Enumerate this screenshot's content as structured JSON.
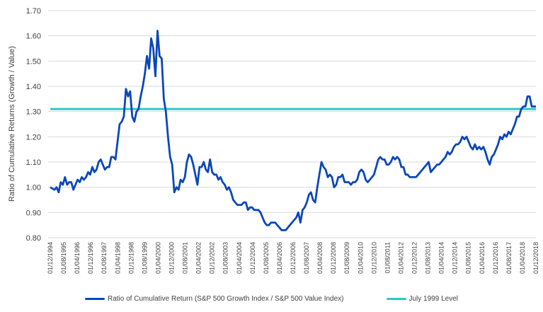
{
  "chart_data": {
    "type": "line",
    "title": "",
    "xlabel": "",
    "ylabel": "Ratio of Cumulative Returns (Growth / Value)",
    "ylim": [
      0.8,
      1.7
    ],
    "yticks": [
      "0.80",
      "0.90",
      "1.00",
      "1.10",
      "1.20",
      "1.30",
      "1.40",
      "1.50",
      "1.60",
      "1.70"
    ],
    "grid": true,
    "legend_position": "bottom",
    "x_start": "01/12/1994",
    "x_end": "01/12/2018",
    "x_frequency": "monthly",
    "xticks": [
      "01/12/1994",
      "01/08/1995",
      "01/04/1996",
      "01/12/1996",
      "01/08/1997",
      "01/04/1998",
      "01/12/1998",
      "01/08/1999",
      "01/04/2000",
      "01/12/2000",
      "01/08/2001",
      "01/04/2002",
      "01/12/2002",
      "01/08/2003",
      "01/04/2004",
      "01/12/2004",
      "01/08/2005",
      "01/04/2006",
      "01/12/2006",
      "01/08/2007",
      "01/04/2008",
      "01/12/2008",
      "01/08/2009",
      "01/04/2010",
      "01/12/2010",
      "01/08/2011",
      "01/04/2012",
      "01/12/2012",
      "01/08/2013",
      "01/04/2014",
      "01/12/2014",
      "01/08/2015",
      "01/04/2016",
      "01/12/2016",
      "01/08/2017",
      "01/04/2018",
      "01/12/2018"
    ],
    "series": [
      {
        "name": "Ratio of Cumulative Return (S&P 500 Growth Index / S&P 500 Value Index)",
        "color": "#0a47b8",
        "keypoints": [
          [
            0,
            1.0
          ],
          [
            2,
            0.99
          ],
          [
            3,
            1.0
          ],
          [
            4,
            0.98
          ],
          [
            5,
            1.02
          ],
          [
            6,
            1.01
          ],
          [
            7,
            1.04
          ],
          [
            8,
            1.01
          ],
          [
            9,
            1.02
          ],
          [
            10,
            1.02
          ],
          [
            11,
            0.99
          ],
          [
            12,
            1.01
          ],
          [
            13,
            1.03
          ],
          [
            14,
            1.02
          ],
          [
            15,
            1.04
          ],
          [
            16,
            1.03
          ],
          [
            17,
            1.04
          ],
          [
            18,
            1.06
          ],
          [
            19,
            1.05
          ],
          [
            20,
            1.08
          ],
          [
            21,
            1.06
          ],
          [
            22,
            1.07
          ],
          [
            23,
            1.1
          ],
          [
            24,
            1.11
          ],
          [
            25,
            1.09
          ],
          [
            26,
            1.07
          ],
          [
            27,
            1.08
          ],
          [
            28,
            1.08
          ],
          [
            29,
            1.12
          ],
          [
            30,
            1.12
          ],
          [
            31,
            1.11
          ],
          [
            32,
            1.18
          ],
          [
            33,
            1.25
          ],
          [
            34,
            1.26
          ],
          [
            35,
            1.28
          ],
          [
            36,
            1.39
          ],
          [
            37,
            1.36
          ],
          [
            38,
            1.38
          ],
          [
            39,
            1.28
          ],
          [
            40,
            1.26
          ],
          [
            41,
            1.3
          ],
          [
            42,
            1.31
          ],
          [
            43,
            1.36
          ],
          [
            44,
            1.4
          ],
          [
            45,
            1.45
          ],
          [
            46,
            1.52
          ],
          [
            47,
            1.47
          ],
          [
            48,
            1.59
          ],
          [
            49,
            1.55
          ],
          [
            50,
            1.44
          ],
          [
            51,
            1.62
          ],
          [
            52,
            1.52
          ],
          [
            53,
            1.51
          ],
          [
            54,
            1.35
          ],
          [
            55,
            1.3
          ],
          [
            56,
            1.2
          ],
          [
            57,
            1.12
          ],
          [
            58,
            1.09
          ],
          [
            59,
            0.98
          ],
          [
            60,
            1.0
          ],
          [
            61,
            0.99
          ],
          [
            62,
            1.03
          ],
          [
            63,
            1.02
          ],
          [
            64,
            1.04
          ],
          [
            65,
            1.1
          ],
          [
            66,
            1.13
          ],
          [
            67,
            1.12
          ],
          [
            68,
            1.09
          ],
          [
            69,
            1.05
          ],
          [
            70,
            1.01
          ],
          [
            71,
            1.08
          ],
          [
            72,
            1.08
          ],
          [
            73,
            1.1
          ],
          [
            74,
            1.07
          ],
          [
            75,
            1.06
          ],
          [
            76,
            1.11
          ],
          [
            77,
            1.06
          ],
          [
            78,
            1.05
          ],
          [
            79,
            1.05
          ],
          [
            80,
            1.03
          ],
          [
            81,
            1.04
          ],
          [
            82,
            1.02
          ],
          [
            83,
            1.01
          ],
          [
            84,
            0.99
          ],
          [
            85,
            1.0
          ],
          [
            86,
            0.98
          ],
          [
            87,
            0.95
          ],
          [
            88,
            0.94
          ],
          [
            89,
            0.93
          ],
          [
            90,
            0.93
          ],
          [
            91,
            0.93
          ],
          [
            92,
            0.94
          ],
          [
            93,
            0.94
          ],
          [
            94,
            0.91
          ],
          [
            95,
            0.92
          ],
          [
            96,
            0.92
          ],
          [
            97,
            0.91
          ],
          [
            98,
            0.91
          ],
          [
            99,
            0.91
          ],
          [
            100,
            0.9
          ],
          [
            101,
            0.88
          ],
          [
            102,
            0.86
          ],
          [
            103,
            0.85
          ],
          [
            104,
            0.85
          ],
          [
            105,
            0.86
          ],
          [
            106,
            0.86
          ],
          [
            107,
            0.86
          ],
          [
            108,
            0.85
          ],
          [
            109,
            0.84
          ],
          [
            110,
            0.83
          ],
          [
            111,
            0.83
          ],
          [
            112,
            0.83
          ],
          [
            113,
            0.84
          ],
          [
            114,
            0.85
          ],
          [
            115,
            0.86
          ],
          [
            116,
            0.87
          ],
          [
            117,
            0.88
          ],
          [
            118,
            0.9
          ],
          [
            119,
            0.86
          ],
          [
            120,
            0.91
          ],
          [
            121,
            0.92
          ],
          [
            122,
            0.94
          ],
          [
            123,
            0.97
          ],
          [
            124,
            0.98
          ],
          [
            125,
            0.95
          ],
          [
            126,
            0.94
          ],
          [
            127,
            1.0
          ],
          [
            128,
            1.05
          ],
          [
            129,
            1.1
          ],
          [
            130,
            1.08
          ],
          [
            131,
            1.07
          ],
          [
            132,
            1.04
          ],
          [
            133,
            1.05
          ],
          [
            134,
            1.04
          ],
          [
            135,
            1.0
          ],
          [
            136,
            1.01
          ],
          [
            137,
            1.04
          ],
          [
            138,
            1.04
          ],
          [
            139,
            1.05
          ],
          [
            140,
            1.02
          ],
          [
            141,
            1.02
          ],
          [
            142,
            1.02
          ],
          [
            143,
            1.01
          ],
          [
            144,
            1.02
          ],
          [
            145,
            1.02
          ],
          [
            146,
            1.03
          ],
          [
            147,
            1.06
          ],
          [
            148,
            1.07
          ],
          [
            149,
            1.06
          ],
          [
            150,
            1.03
          ],
          [
            151,
            1.02
          ],
          [
            152,
            1.03
          ],
          [
            153,
            1.04
          ],
          [
            154,
            1.05
          ],
          [
            155,
            1.08
          ],
          [
            156,
            1.11
          ],
          [
            157,
            1.12
          ],
          [
            158,
            1.11
          ],
          [
            159,
            1.11
          ],
          [
            160,
            1.09
          ],
          [
            161,
            1.09
          ],
          [
            162,
            1.1
          ],
          [
            163,
            1.12
          ],
          [
            164,
            1.11
          ],
          [
            165,
            1.12
          ],
          [
            166,
            1.11
          ],
          [
            167,
            1.08
          ],
          [
            168,
            1.08
          ],
          [
            169,
            1.05
          ],
          [
            170,
            1.05
          ],
          [
            171,
            1.04
          ],
          [
            172,
            1.04
          ],
          [
            173,
            1.04
          ],
          [
            174,
            1.04
          ],
          [
            175,
            1.05
          ],
          [
            176,
            1.06
          ],
          [
            177,
            1.07
          ],
          [
            178,
            1.08
          ],
          [
            179,
            1.09
          ],
          [
            180,
            1.1
          ],
          [
            181,
            1.06
          ],
          [
            182,
            1.07
          ],
          [
            183,
            1.08
          ],
          [
            184,
            1.09
          ],
          [
            185,
            1.09
          ],
          [
            186,
            1.1
          ],
          [
            187,
            1.11
          ],
          [
            188,
            1.12
          ],
          [
            189,
            1.14
          ],
          [
            190,
            1.13
          ],
          [
            191,
            1.14
          ],
          [
            192,
            1.16
          ],
          [
            193,
            1.17
          ],
          [
            194,
            1.17
          ],
          [
            195,
            1.18
          ],
          [
            196,
            1.2
          ],
          [
            197,
            1.19
          ],
          [
            198,
            1.2
          ],
          [
            199,
            1.18
          ],
          [
            200,
            1.16
          ],
          [
            201,
            1.15
          ],
          [
            202,
            1.17
          ],
          [
            203,
            1.15
          ],
          [
            204,
            1.16
          ],
          [
            205,
            1.15
          ],
          [
            206,
            1.16
          ],
          [
            207,
            1.14
          ],
          [
            208,
            1.11
          ],
          [
            209,
            1.09
          ],
          [
            210,
            1.12
          ],
          [
            211,
            1.13
          ],
          [
            212,
            1.15
          ],
          [
            213,
            1.17
          ],
          [
            214,
            1.2
          ],
          [
            215,
            1.19
          ],
          [
            216,
            1.21
          ],
          [
            217,
            1.2
          ],
          [
            218,
            1.22
          ],
          [
            219,
            1.21
          ],
          [
            220,
            1.23
          ],
          [
            221,
            1.25
          ],
          [
            222,
            1.28
          ],
          [
            223,
            1.28
          ],
          [
            224,
            1.31
          ],
          [
            225,
            1.32
          ],
          [
            226,
            1.32
          ],
          [
            227,
            1.36
          ],
          [
            228,
            1.36
          ],
          [
            229,
            1.32
          ],
          [
            230,
            1.32
          ],
          [
            231,
            1.32
          ]
        ]
      },
      {
        "name": "July 1999 Level",
        "color": "#2ec6c8",
        "value": 1.31
      }
    ]
  },
  "legend": {
    "item1": "Ratio of Cumulative Return (S&P 500 Growth Index / S&P 500 Value Index)",
    "item2": "July 1999 Level"
  }
}
